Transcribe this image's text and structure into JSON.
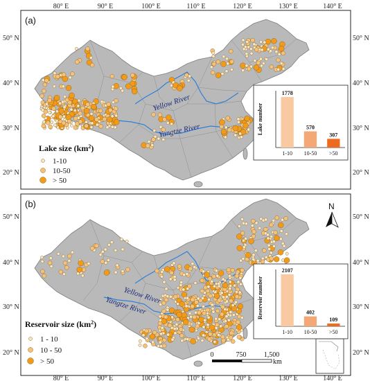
{
  "axes": {
    "lon_ticks": [
      "80° E",
      "90° E",
      "100° E",
      "110° E",
      "120° E",
      "130° E",
      "140° E"
    ],
    "lat_ticks_a": [
      "50° N",
      "40° N",
      "30° N",
      "20° N"
    ],
    "lat_ticks_b": [
      "50° N",
      "40° N",
      "30° N",
      "20° N"
    ]
  },
  "panel_a": {
    "label": "(a)",
    "legend_title": "Lake size (km",
    "legend_sup": "2",
    "legend_close": ")",
    "legend_items": [
      "1-10",
      "10-50",
      "> 50"
    ],
    "river_yellow": "Yellow River",
    "river_yangtze": "Yangtze River"
  },
  "panel_b": {
    "label": "(b)",
    "legend_title": "Reservoir size (km",
    "legend_sup": "2",
    "legend_close": ")",
    "legend_items": [
      "1 - 10",
      "10 - 50",
      "> 50"
    ],
    "river_yellow": "Yellow River",
    "river_yangtze": "Yangtze River",
    "north_label": "N",
    "scale_labels": [
      "0",
      "750",
      "1,500"
    ],
    "scale_unit": "km"
  },
  "colors": {
    "land": "#b9b9b9",
    "water": "#2f7fd6",
    "small": "#fbe6bf",
    "medium": "#f6c27a",
    "large": "#f29a1a",
    "bar_small": "#f9c9a2",
    "bar_medium": "#f4a876",
    "bar_large": "#ee6a1f"
  },
  "chart_data": [
    {
      "type": "bar",
      "title": "",
      "ylabel": "Lake number",
      "categories": [
        "1-10",
        "10-50",
        ">50"
      ],
      "values": [
        1778,
        570,
        307
      ],
      "ylim": [
        0,
        2000
      ]
    },
    {
      "type": "bar",
      "title": "",
      "ylabel": "Reservoir number",
      "categories": [
        "1-10",
        "10-50",
        ">50"
      ],
      "values": [
        2107,
        402,
        109
      ],
      "ylim": [
        0,
        2300
      ]
    }
  ]
}
